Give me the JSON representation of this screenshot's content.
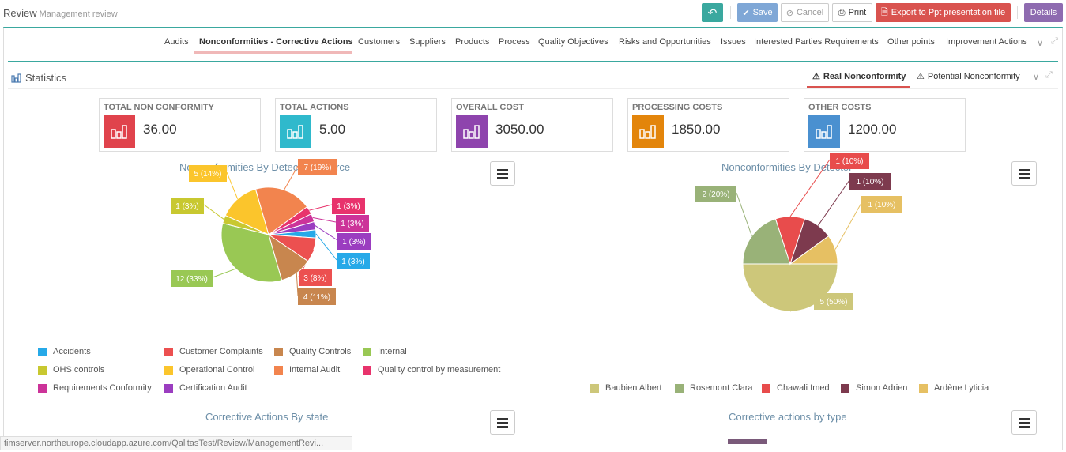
{
  "header": {
    "title": "Review",
    "subtitle": "Management review",
    "buttons": {
      "save": "Save",
      "cancel": "Cancel",
      "print": "Print",
      "export": "Export to Ppt presentation file",
      "details": "Details"
    }
  },
  "tabs": [
    "Audits",
    "Nonconformities - Corrective Actions",
    "Customers",
    "Suppliers",
    "Products",
    "Process",
    "Quality Objectives",
    "Risks and Opportunities",
    "Issues",
    "Interested Parties Requirements",
    "Other points",
    "Improvement Actions"
  ],
  "active_tab": "Nonconformities - Corrective Actions",
  "statistics": {
    "title": "Statistics",
    "views": [
      "Real Nonconformity",
      "Potential Nonconformity"
    ],
    "active_view": "Real Nonconformity"
  },
  "kpis": [
    {
      "label": "TOTAL NON CONFORMITY",
      "value": "36.00",
      "color": "#e0434c"
    },
    {
      "label": "TOTAL ACTIONS",
      "value": "5.00",
      "color": "#2fb9cc"
    },
    {
      "label": "OVERALL COST",
      "value": "3050.00",
      "color": "#8e44ad"
    },
    {
      "label": "PROCESSING COSTS",
      "value": "1850.00",
      "color": "#e3850b"
    },
    {
      "label": "OTHER COSTS",
      "value": "1200.00",
      "color": "#4a90d0"
    }
  ],
  "chart_data": [
    {
      "type": "pie",
      "title": "Nonconformities By Detection Source",
      "slices": [
        {
          "name": "Accidents",
          "value": 1,
          "label": "1 (3%)",
          "color": "#26a9e8"
        },
        {
          "name": "Customer Complaints",
          "value": 3,
          "label": "3 (8%)",
          "color": "#ec5050"
        },
        {
          "name": "Quality Controls",
          "value": 4,
          "label": "4 (11%)",
          "color": "#c8864e"
        },
        {
          "name": "Internal",
          "value": 12,
          "label": "12 (33%)",
          "color": "#99c854"
        },
        {
          "name": "OHS controls",
          "value": 1,
          "label": "1 (3%)",
          "color": "#c8c830"
        },
        {
          "name": "Operational Control",
          "value": 5,
          "label": "5 (14%)",
          "color": "#fbc52c"
        },
        {
          "name": "Internal Audit",
          "value": 7,
          "label": "7 (19%)",
          "color": "#f2844e"
        },
        {
          "name": "Quality control by measurement",
          "value": 1,
          "label": "1 (3%)",
          "color": "#e8336c"
        },
        {
          "name": "Requirements Conformity",
          "value": 1,
          "label": "1 (3%)",
          "color": "#cc3399"
        },
        {
          "name": "Certification Audit",
          "value": 1,
          "label": "1 (3%)",
          "color": "#9b3dc0"
        }
      ]
    },
    {
      "type": "pie",
      "title": "Nonconformities By Detector",
      "slices": [
        {
          "name": "Baubien Albert",
          "value": 5,
          "label": "5 (50%)",
          "color": "#cdc77a"
        },
        {
          "name": "Rosemont Clara",
          "value": 2,
          "label": "2 (20%)",
          "color": "#99b278"
        },
        {
          "name": "Chawali Imed",
          "value": 1,
          "label": "1 (10%)",
          "color": "#e84c4c"
        },
        {
          "name": "Simon Adrien",
          "value": 1,
          "label": "1 (10%)",
          "color": "#7d3a4e"
        },
        {
          "name": "Ardène Lyticia",
          "value": 1,
          "label": "1 (10%)",
          "color": "#e6c063"
        }
      ]
    },
    {
      "type": "bar",
      "title": "Corrective Actions By state"
    },
    {
      "type": "bar",
      "title": "Corrective actions by type"
    }
  ],
  "status_url": "timserver.northeurope.cloudapp.azure.com/QalitasTest/Review/ManagementRevi..."
}
